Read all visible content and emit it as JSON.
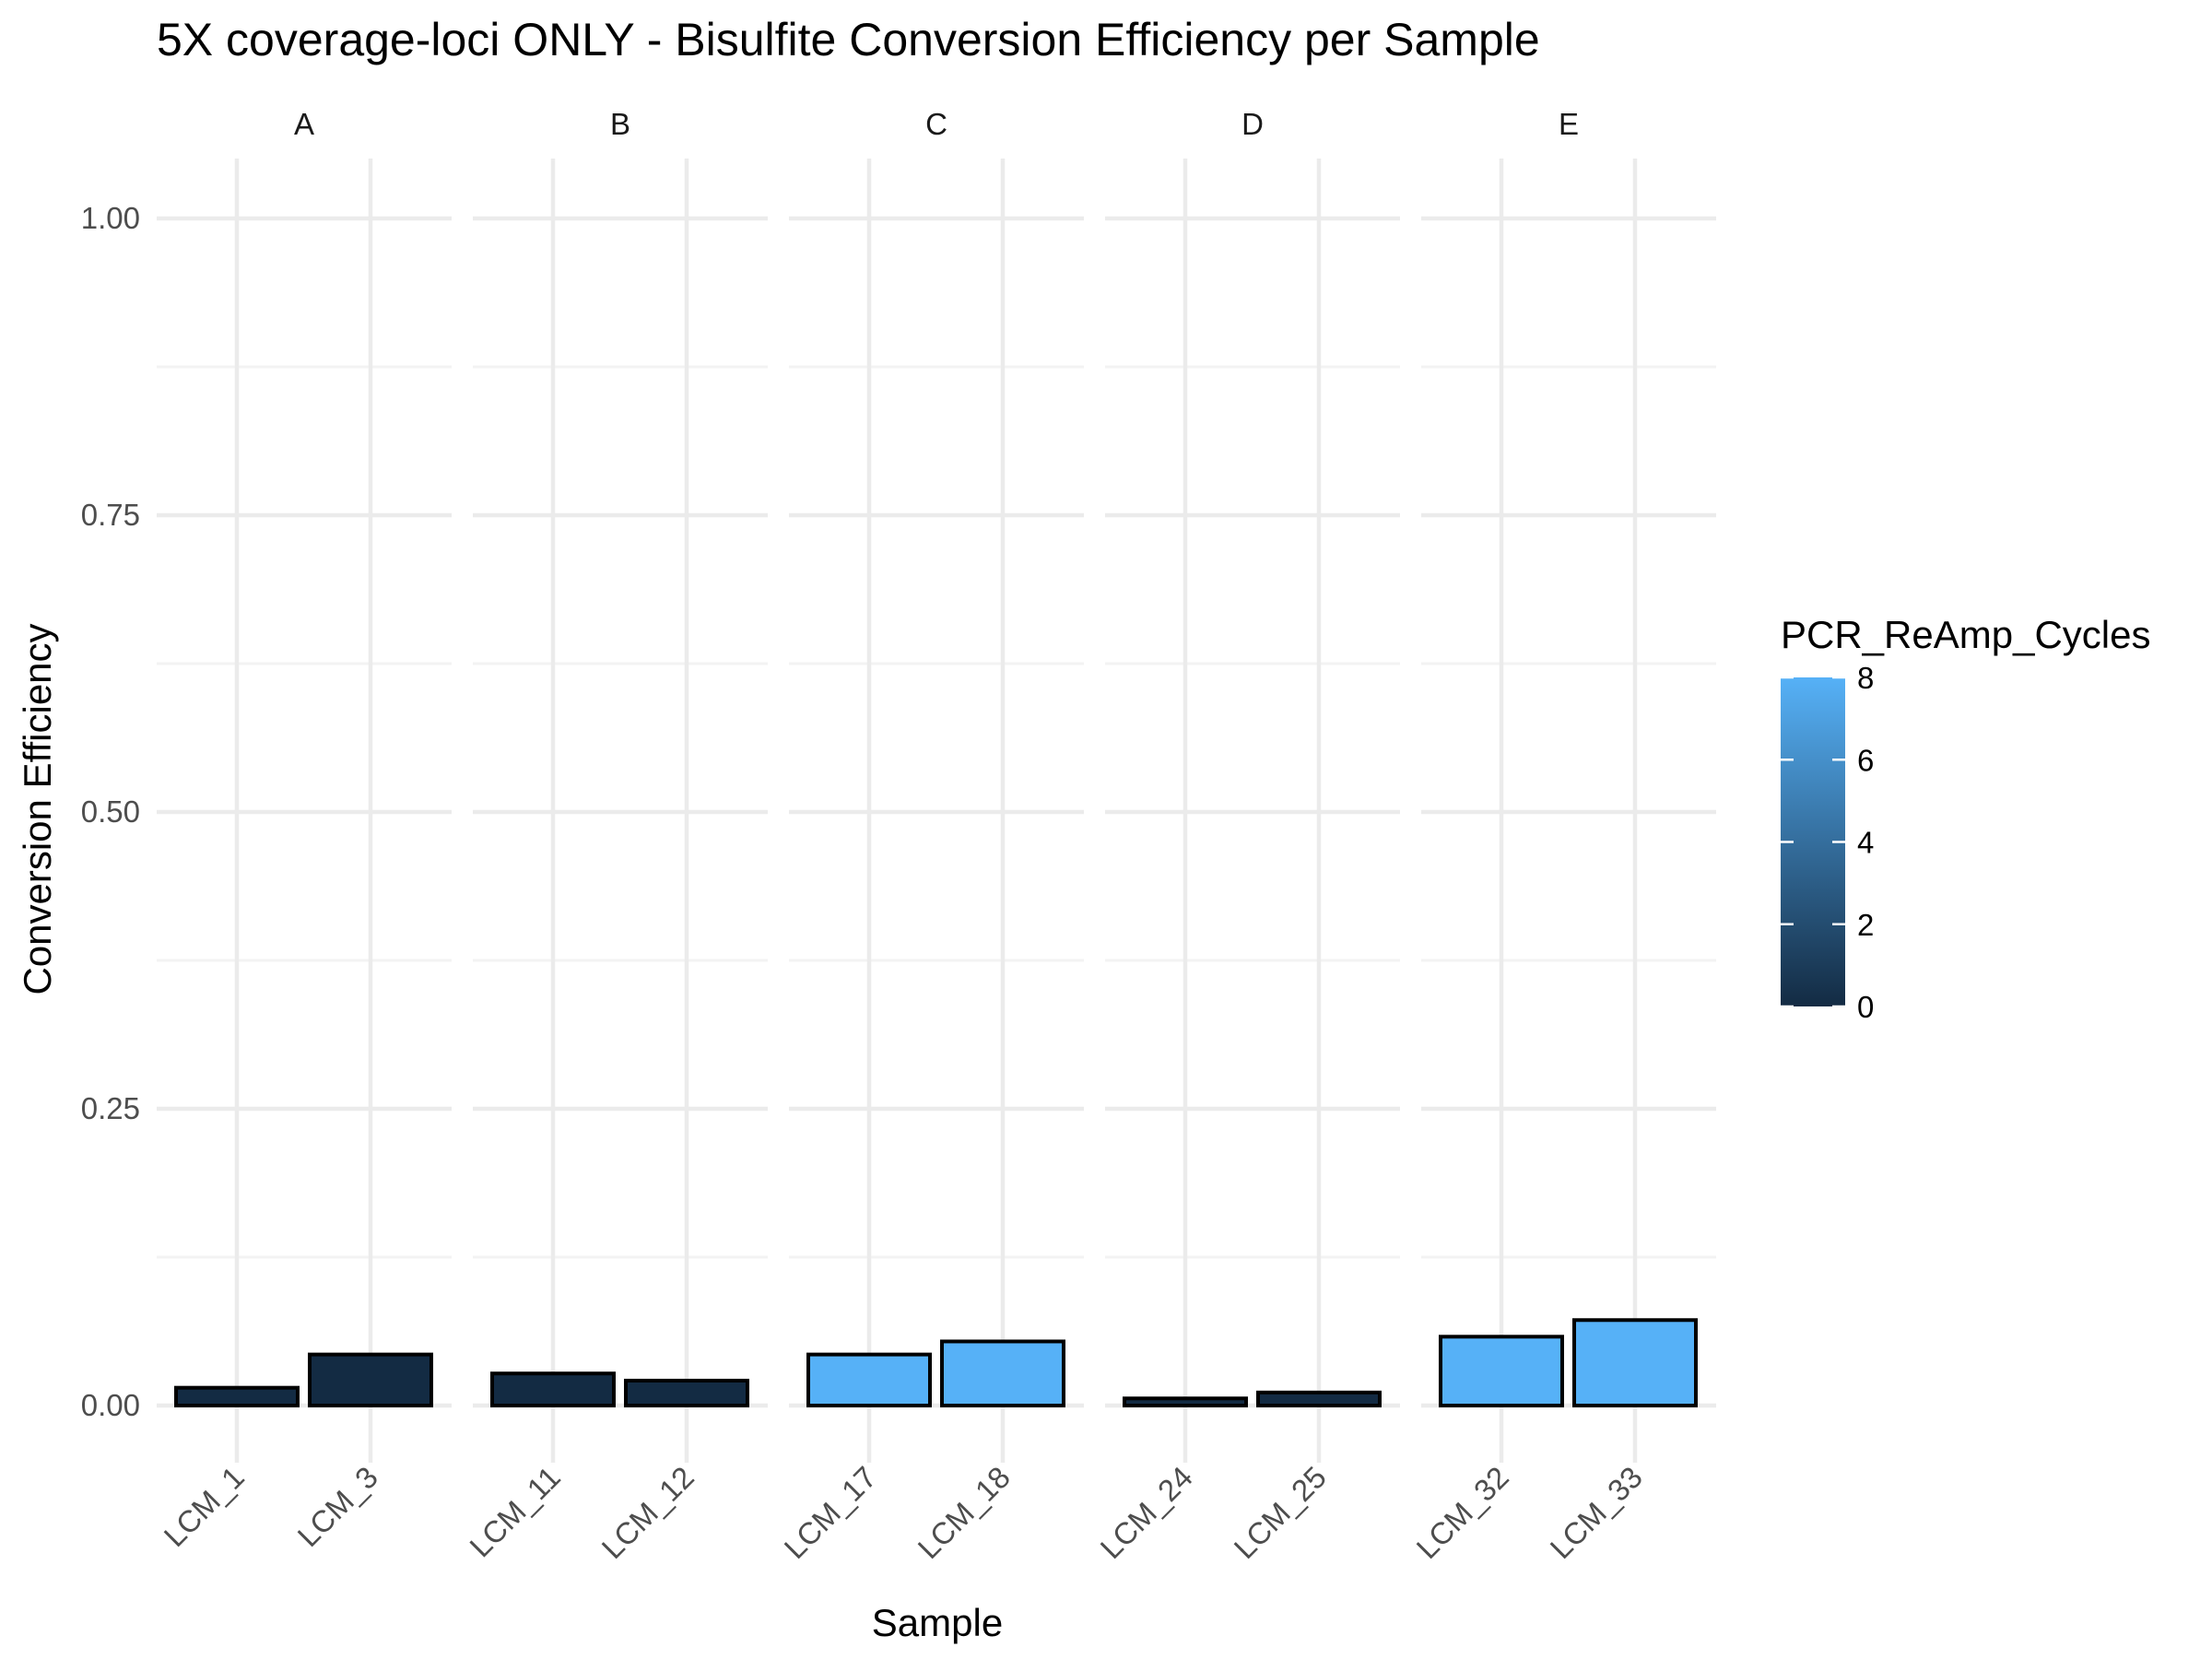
{
  "chart_data": {
    "type": "bar",
    "title": "5X coverage-loci ONLY - Bisulfite Conversion Efficiency per Sample",
    "xlabel": "Sample",
    "ylabel": "Conversion Efficiency",
    "ylim": [
      0,
      1.05
    ],
    "yticks": [
      "0.00",
      "0.25",
      "0.50",
      "0.75",
      "1.00"
    ],
    "grid": true,
    "facets": [
      {
        "label": "A",
        "categories": [
          "LCM_1",
          "LCM_3"
        ],
        "values": [
          0.015,
          0.043
        ],
        "pcr_cycles": [
          0,
          0
        ]
      },
      {
        "label": "B",
        "categories": [
          "LCM_11",
          "LCM_12"
        ],
        "values": [
          0.027,
          0.021
        ],
        "pcr_cycles": [
          0,
          0
        ]
      },
      {
        "label": "C",
        "categories": [
          "LCM_17",
          "LCM_18"
        ],
        "values": [
          0.043,
          0.054
        ],
        "pcr_cycles": [
          8,
          8
        ]
      },
      {
        "label": "D",
        "categories": [
          "LCM_24",
          "LCM_25"
        ],
        "values": [
          0.006,
          0.011
        ],
        "pcr_cycles": [
          0,
          0
        ]
      },
      {
        "label": "E",
        "categories": [
          "LCM_32",
          "LCM_33"
        ],
        "values": [
          0.058,
          0.072
        ],
        "pcr_cycles": [
          8,
          8
        ]
      }
    ],
    "legend": {
      "title": "PCR_ReAmp_Cycles",
      "placement": "right",
      "ticks": [
        "0",
        "2",
        "4",
        "6",
        "8"
      ],
      "range": [
        0,
        8
      ],
      "color_low": "#132b43",
      "color_high": "#56b1f7"
    }
  }
}
